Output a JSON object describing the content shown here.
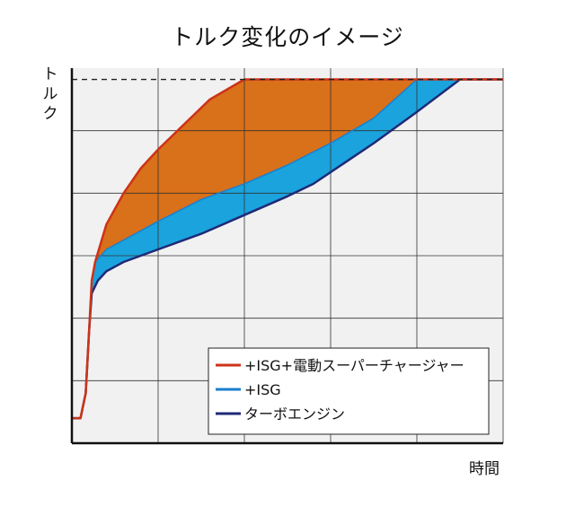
{
  "chart_data": {
    "type": "area",
    "title": "トルク変化のイメージ",
    "xlabel": "時間",
    "ylabel": "トルク",
    "xlim": [
      0,
      5
    ],
    "ylim": [
      0,
      6
    ],
    "grid": true,
    "x_ticks": [
      0,
      1,
      2,
      3,
      4,
      5
    ],
    "y_ticks": [
      0,
      1,
      2,
      3,
      4,
      5,
      6
    ],
    "x_tick_labels": [],
    "y_tick_labels": [],
    "max_torque_reference": 5.82,
    "legend_position": "bottom-right",
    "colors": {
      "isg_supercharger": "#d9701a",
      "isg": "#1aa3dc",
      "turbo": "#1e2a78",
      "isg_supercharger_line": "#cc3318",
      "background": "#f1f1f1",
      "grid": "#333333"
    },
    "series": [
      {
        "name": "+ISG+電動スーパーチャージャー",
        "color": "#cc3318",
        "fill": "#d9701a",
        "x": [
          0,
          0.1,
          0.16,
          0.2,
          0.23,
          0.27,
          0.4,
          0.6,
          0.8,
          1.0,
          1.3,
          1.6,
          2.0,
          2.5,
          3.0,
          3.5,
          4.0,
          4.5,
          5.0
        ],
        "y": [
          0.4,
          0.4,
          0.8,
          1.8,
          2.6,
          2.9,
          3.5,
          4.0,
          4.4,
          4.7,
          5.1,
          5.5,
          5.82,
          5.82,
          5.82,
          5.82,
          5.82,
          5.82,
          5.82
        ]
      },
      {
        "name": "+ISG",
        "color": "#1a7fd0",
        "fill": "#1aa3dc",
        "x": [
          0,
          0.1,
          0.16,
          0.2,
          0.23,
          0.27,
          0.4,
          0.6,
          1.0,
          1.5,
          2.0,
          2.5,
          3.0,
          3.5,
          4.0,
          4.5,
          5.0
        ],
        "y": [
          0.4,
          0.4,
          0.8,
          1.8,
          2.6,
          2.9,
          3.1,
          3.25,
          3.55,
          3.9,
          4.15,
          4.45,
          4.8,
          5.2,
          5.82,
          5.82,
          5.82
        ]
      },
      {
        "name": "ターボエンジン",
        "color": "#1e2a78",
        "x": [
          0,
          0.1,
          0.16,
          0.2,
          0.23,
          0.3,
          0.4,
          0.6,
          1.0,
          1.5,
          2.0,
          2.5,
          2.8,
          3.5,
          4.0,
          4.5,
          5.0
        ],
        "y": [
          0.4,
          0.4,
          0.8,
          1.8,
          2.4,
          2.6,
          2.75,
          2.9,
          3.1,
          3.35,
          3.65,
          3.95,
          4.15,
          4.8,
          5.3,
          5.82,
          5.82
        ]
      }
    ]
  }
}
